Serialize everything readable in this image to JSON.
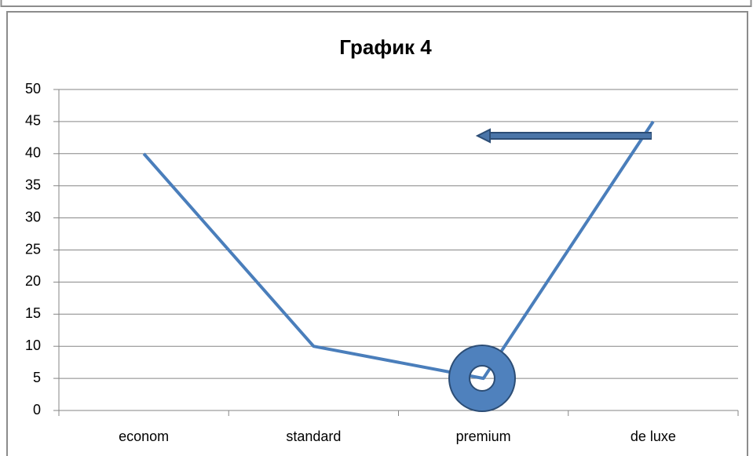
{
  "chart_data": {
    "type": "line",
    "title": "График 4",
    "categories": [
      "econom",
      "standard",
      "premium",
      "de luxe"
    ],
    "values": [
      40,
      10,
      5,
      45
    ],
    "color": "#4a7ebb",
    "ylim": [
      0,
      50
    ],
    "yticks": [
      0,
      5,
      10,
      15,
      20,
      25,
      30,
      35,
      40,
      45,
      50
    ],
    "grid": true
  }
}
